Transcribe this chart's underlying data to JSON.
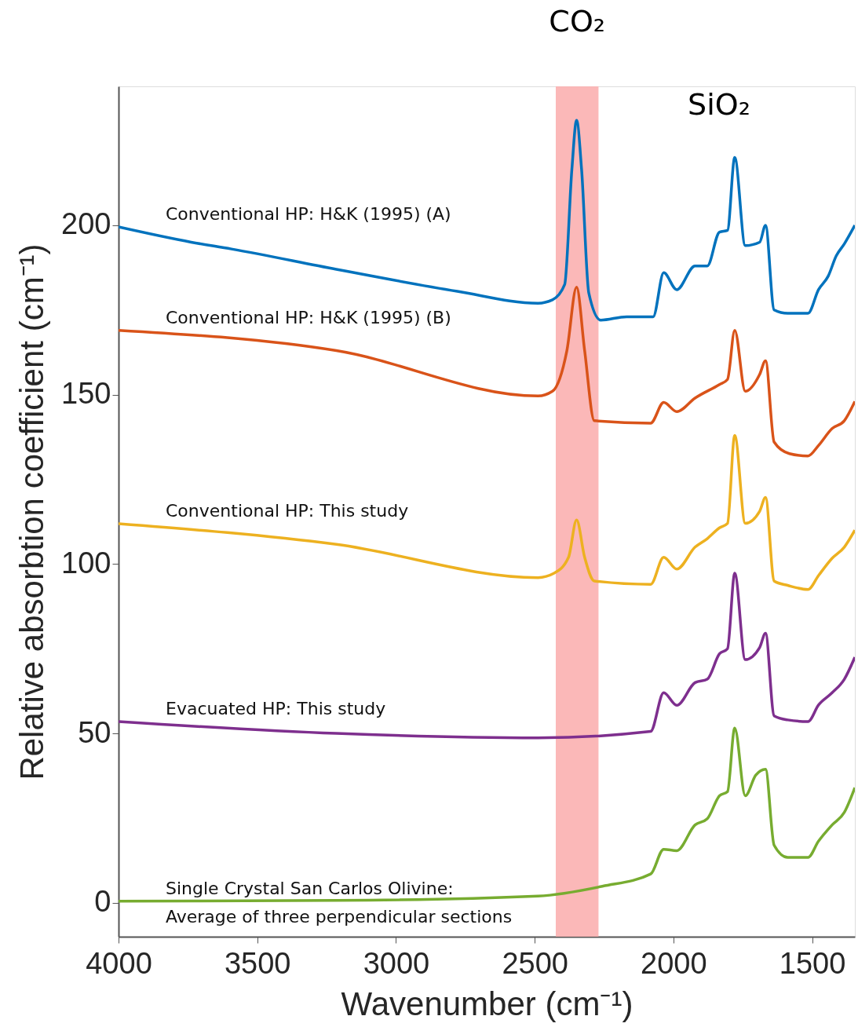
{
  "chart_data": {
    "type": "line",
    "xlabel": "Wavenumber (cm⁻¹)",
    "ylabel": "Relative absorbtion coefficient (cm⁻¹)",
    "xlim": [
      4000,
      1346
    ],
    "ylim": [
      -10,
      241
    ],
    "xticks": [
      4000,
      3500,
      3000,
      2500,
      2000,
      1500
    ],
    "yticks": [
      0,
      50,
      100,
      150,
      200
    ],
    "grid": false,
    "marker": "none",
    "line_style": "solid",
    "bands": [
      {
        "axis": "x",
        "from": 2424,
        "to": 2270,
        "label": "CO₂",
        "color": "#fbb0b0"
      }
    ],
    "annotations": [
      "SiO₂"
    ],
    "series": [
      {
        "name": "Conventional HP: H&K (1995)  (A)",
        "color": "#0072bd",
        "x": [
          4000,
          3738,
          3593,
          3215,
          2779,
          2488,
          2436,
          2392,
          2366,
          2349,
          2331,
          2305,
          2262,
          2169,
          2073,
          2035,
          1988,
          1922,
          1878,
          1834,
          1805,
          1779,
          1741,
          1689,
          1668,
          1637,
          1588,
          1515,
          1477,
          1442,
          1413,
          1384,
          1346
        ],
        "values": [
          199.5,
          195,
          193,
          187,
          180.5,
          177,
          178,
          182.5,
          216.5,
          231,
          216.5,
          180,
          172,
          173,
          173,
          186,
          181,
          188,
          188,
          198,
          198.5,
          220,
          194,
          195,
          200,
          175,
          174,
          174,
          181,
          185,
          191,
          194.5,
          200
        ]
      },
      {
        "name": "Conventional HP: H&K (1995)  (B)",
        "color": "#d95319",
        "x": [
          4000,
          3215,
          2488,
          2436,
          2384,
          2349,
          2320,
          2285,
          2082,
          2035,
          1988,
          1922,
          1834,
          1805,
          1779,
          1741,
          1689,
          1668,
          1637,
          1582,
          1515,
          1477,
          1428,
          1384,
          1346
        ],
        "values": [
          169,
          163,
          149.6,
          151,
          163,
          181.7,
          163,
          142.3,
          141.6,
          147.7,
          145,
          149,
          153,
          154.5,
          169,
          151,
          156,
          160,
          136,
          132.6,
          131.9,
          135,
          140,
          142.3,
          148
        ]
      },
      {
        "name": "Conventional HP: This study",
        "color": "#edb120",
        "x": [
          4000,
          3215,
          2488,
          2430,
          2378,
          2349,
          2320,
          2285,
          2082,
          2035,
          1988,
          1922,
          1878,
          1834,
          1805,
          1779,
          1741,
          1689,
          1668,
          1637,
          1588,
          1515,
          1477,
          1428,
          1384,
          1346
        ],
        "values": [
          111.9,
          105.8,
          96,
          97.3,
          102,
          113,
          102,
          95,
          94,
          102,
          98.5,
          105,
          107.5,
          110.7,
          112,
          138,
          112,
          115.6,
          119.7,
          95,
          93.7,
          92.5,
          96.6,
          101.7,
          105,
          110
        ]
      },
      {
        "name": "Evacuated HP: This study",
        "color": "#7e2f8e",
        "x": [
          4000,
          3215,
          2488,
          2082,
          2035,
          1988,
          1922,
          1878,
          1834,
          1805,
          1779,
          1741,
          1689,
          1668,
          1637,
          1588,
          1515,
          1477,
          1428,
          1384,
          1346
        ],
        "values": [
          53.5,
          50,
          48.7,
          50.6,
          62,
          58.3,
          65,
          66,
          73.5,
          75,
          97.3,
          71.8,
          75.4,
          79.6,
          55.2,
          54,
          53.5,
          58.4,
          62,
          66,
          72.5
        ]
      },
      {
        "name": "Single Crystal San Carlos Olivine:\nAverage of three perpendicular sections",
        "color": "#77ac30",
        "x": [
          4000,
          3215,
          2488,
          2256,
          2082,
          2035,
          1988,
          1922,
          1878,
          1834,
          1805,
          1779,
          1741,
          1703,
          1668,
          1637,
          1588,
          1515,
          1477,
          1428,
          1384,
          1346
        ],
        "values": [
          0.5,
          0.7,
          2,
          4.9,
          8.5,
          15.8,
          15.4,
          23,
          24.8,
          31.6,
          32.8,
          51.6,
          31.6,
          37.7,
          39.4,
          17,
          13.4,
          13.4,
          18.2,
          23,
          26.7,
          34
        ]
      }
    ]
  }
}
